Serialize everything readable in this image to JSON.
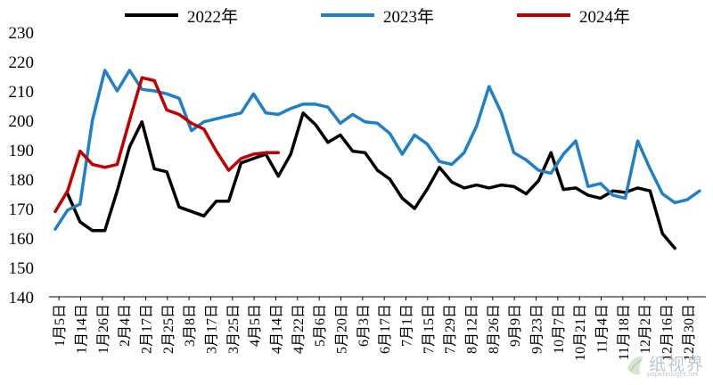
{
  "chart_data": {
    "type": "line",
    "title": "",
    "xlabel": "",
    "ylabel": "",
    "ylim": [
      140,
      230
    ],
    "yticks": [
      140,
      150,
      160,
      170,
      180,
      190,
      200,
      210,
      220,
      230
    ],
    "grid": false,
    "legend_position": "top",
    "x_tick_labels": [
      "1月5日",
      "1月14日",
      "1月26日",
      "2月4日",
      "2月17日",
      "2月25日",
      "3月8日",
      "3月17日",
      "3月25日",
      "4月5日",
      "4月14日",
      "4月22日",
      "5月6日",
      "5月20日",
      "6月3日",
      "6月17日",
      "7月1日",
      "7月15日",
      "7月29日",
      "8月12日",
      "8月26日",
      "9月9日",
      "9月23日",
      "10月7日",
      "10月21日",
      "11月4日",
      "11月18日",
      "12月2日",
      "12月16日",
      "12月30日"
    ],
    "series": [
      {
        "name": "2022年",
        "color": "#000000",
        "values": [
          null,
          175,
          165.5,
          162.5,
          162.5,
          176,
          191,
          199.5,
          183.5,
          182.5,
          170.5,
          169,
          167.5,
          172.5,
          172.5,
          185.5,
          187,
          188.5,
          181,
          188.5,
          202.5,
          198.5,
          192.5,
          195,
          189.5,
          189,
          183,
          180,
          173.5,
          170,
          176.5,
          184,
          179,
          177,
          178,
          177,
          178,
          177.5,
          175,
          179.5,
          189,
          176.5,
          177,
          174.5,
          173.5,
          176,
          175.5,
          177,
          176,
          161.5,
          156.5
        ]
      },
      {
        "name": "2023年",
        "color": "#1f7fc8",
        "values": [
          163,
          169.5,
          171.5,
          200,
          217,
          210,
          217,
          210.5,
          210,
          209,
          207.5,
          196.5,
          199.5,
          200.5,
          201.5,
          202.5,
          209,
          202.5,
          202,
          204,
          205.5,
          205.5,
          204.5,
          199,
          202,
          199.5,
          199,
          195.5,
          188.5,
          195,
          192,
          186,
          185,
          189,
          198,
          211.5,
          202.5,
          189,
          186.5,
          183,
          182,
          188.5,
          193,
          177.5,
          178.5,
          174.5,
          173.5,
          193,
          183.5,
          175,
          172,
          173,
          176
        ]
      },
      {
        "name": "2024年",
        "color": "#c00000",
        "values": [
          169,
          176,
          189.5,
          185,
          184,
          185,
          200,
          214.5,
          213.5,
          203.5,
          202,
          199,
          197,
          189.5,
          183,
          187,
          188.5,
          189,
          189
        ]
      }
    ]
  },
  "watermark": {
    "text": "纸视界",
    "subtext": "paperinsight.net"
  }
}
